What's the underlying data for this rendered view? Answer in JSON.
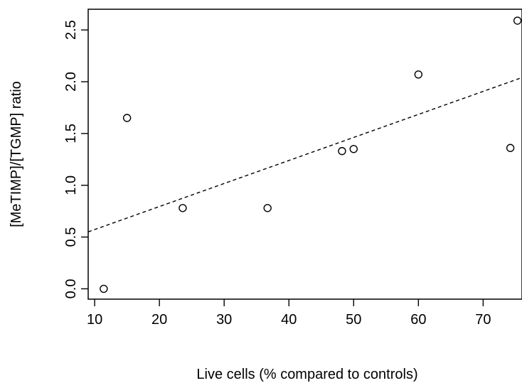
{
  "chart_data": {
    "type": "scatter",
    "title": "",
    "xlabel": "Live cells (% compared to controls)",
    "ylabel": "[MeTIMP]/[TGMP] ratio",
    "xlim": [
      9,
      76
    ],
    "ylim": [
      -0.1,
      2.7
    ],
    "x_ticks": [
      {
        "value": 10,
        "label": "10"
      },
      {
        "value": 20,
        "label": "20"
      },
      {
        "value": 30,
        "label": "30"
      },
      {
        "value": 40,
        "label": "40"
      },
      {
        "value": 50,
        "label": "50"
      },
      {
        "value": 60,
        "label": "60"
      },
      {
        "value": 70,
        "label": "70"
      }
    ],
    "y_ticks": [
      {
        "value": 0.0,
        "label": "0.0"
      },
      {
        "value": 0.5,
        "label": "0.5"
      },
      {
        "value": 1.0,
        "label": "1.0"
      },
      {
        "value": 1.5,
        "label": "1.5"
      },
      {
        "value": 2.0,
        "label": "2.0"
      },
      {
        "value": 2.5,
        "label": "2.5"
      }
    ],
    "points": [
      {
        "x": 11.4,
        "y": 0.0
      },
      {
        "x": 15.0,
        "y": 1.65
      },
      {
        "x": 23.6,
        "y": 0.78
      },
      {
        "x": 36.7,
        "y": 0.78
      },
      {
        "x": 48.2,
        "y": 1.33
      },
      {
        "x": 50.0,
        "y": 1.35
      },
      {
        "x": 60.0,
        "y": 2.07
      },
      {
        "x": 74.2,
        "y": 1.36
      },
      {
        "x": 75.3,
        "y": 2.59
      }
    ],
    "trend_line": {
      "style": "dashed",
      "x": [
        9,
        76
      ],
      "y": [
        0.55,
        2.04
      ]
    },
    "grid": false,
    "legend": "none",
    "marker": "open-circle",
    "colors": {
      "foreground": "#000000",
      "background": "#ffffff"
    }
  }
}
